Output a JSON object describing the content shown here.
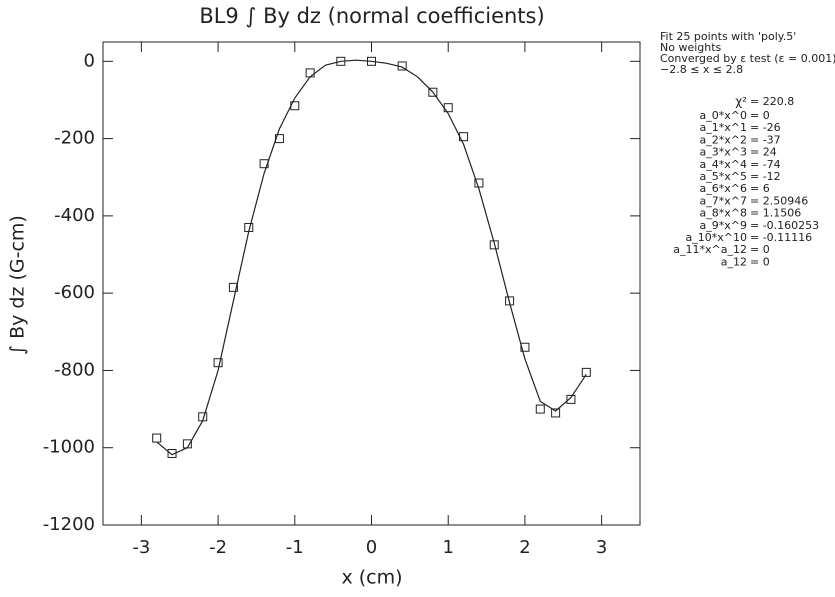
{
  "chart_data": {
    "type": "scatter",
    "title": "BL9 ∫ By dz (normal coefficients)",
    "x_label": "x (cm)",
    "y_label": "∫ By dz (G-cm)",
    "xlim": [
      -3.5,
      3.5
    ],
    "ylim": [
      -1200,
      50
    ],
    "xticks": [
      -3,
      -2,
      -1,
      0,
      1,
      2,
      3
    ],
    "yticks": [
      0,
      -200,
      -400,
      -600,
      -800,
      -1000,
      -1200
    ],
    "series": [
      {
        "kind": "points",
        "color": "#222222",
        "x": [
          -2.8,
          -2.6,
          -2.4,
          -2.2,
          -2.0,
          -1.8,
          -1.6,
          -1.4,
          -1.2,
          -1.0,
          -0.8,
          -0.4,
          0,
          0.4,
          0.8,
          1.0,
          1.2,
          1.4,
          1.6,
          1.8,
          2.0,
          2.2,
          2.4,
          2.6,
          2.8
        ],
        "values": [
          -975,
          -1015,
          -990,
          -920,
          -780,
          -585,
          -430,
          -265,
          -200,
          -115,
          -30,
          0,
          0,
          -12,
          -80,
          -120,
          -195,
          -315,
          -475,
          -620,
          -740,
          -900,
          -910,
          -875,
          -805
        ]
      },
      {
        "kind": "fit",
        "color": "#222222",
        "x": [
          -2.8,
          -2.6,
          -2.4,
          -2.2,
          -2.0,
          -1.8,
          -1.6,
          -1.4,
          -1.2,
          -1.0,
          -0.8,
          -0.6,
          -0.4,
          -0.2,
          0,
          0.2,
          0.4,
          0.6,
          0.8,
          1.0,
          1.2,
          1.4,
          1.6,
          1.8,
          2.0,
          2.2,
          2.4,
          2.6,
          2.8
        ],
        "values": [
          -985,
          -1018,
          -1000,
          -930,
          -800,
          -620,
          -440,
          -290,
          -175,
          -95,
          -40,
          -10,
          0,
          3,
          0,
          -5,
          -15,
          -40,
          -80,
          -135,
          -215,
          -330,
          -470,
          -625,
          -770,
          -880,
          -905,
          -870,
          -810
        ]
      }
    ],
    "fit_info": [
      "Fit 25 points with 'poly.5'",
      "No weights",
      "Converged by ε test (ε = 0.001)",
      "−2.8 ≤ x ≤ 2.8"
    ],
    "chi2": {
      "label": "χ²",
      "value": "= 220.8"
    },
    "parameters": [
      {
        "name": "a_0*x^0",
        "value": "= 0"
      },
      {
        "name": "a_1*x^1",
        "value": "= -26"
      },
      {
        "name": "a_2*x^2",
        "value": "= -37"
      },
      {
        "name": "a_3*x^3",
        "value": "= 24"
      },
      {
        "name": "a_4*x^4",
        "value": "= -74"
      },
      {
        "name": "a_5*x^5",
        "value": "= -12"
      },
      {
        "name": "a_6*x^6",
        "value": "= 6"
      },
      {
        "name": "a_7*x^7",
        "value": "= 2.50946"
      },
      {
        "name": "a_8*x^8",
        "value": "= 1.1506"
      },
      {
        "name": "a_9*x^9",
        "value": "= -0.160253"
      },
      {
        "name": "a_10*x^10",
        "value": "= -0.11116"
      },
      {
        "name": "a_11*x^a_12",
        "value": "= 0"
      },
      {
        "name": "a_12",
        "value": "= 0"
      }
    ]
  }
}
